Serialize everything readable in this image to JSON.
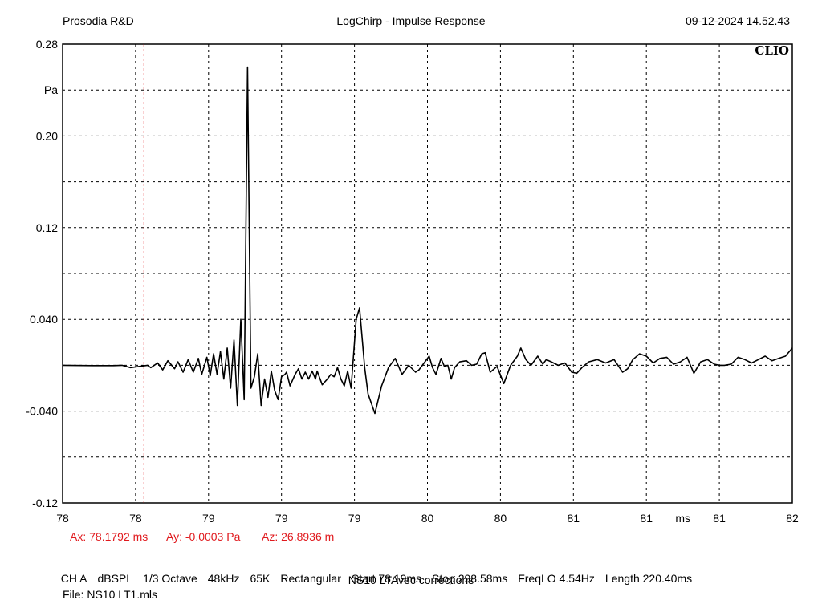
{
  "header": {
    "left": "Prosodia R&D",
    "center": "LogChirp - Impulse Response",
    "right": "09-12-2024 14.52.43"
  },
  "brand": "CLIO",
  "colors": {
    "trace": "#000000",
    "grid": "#000000",
    "cursor": "#e0191d"
  },
  "chart_data": {
    "type": "line",
    "title": "LogChirp - Impulse Response",
    "xlabel": "ms",
    "ylabel": "Pa",
    "xlim": [
      77.7,
      82.0
    ],
    "ylim": [
      -0.12,
      0.28
    ],
    "x_tick_labels": [
      "78",
      "78",
      "79",
      "79",
      "79",
      "80",
      "80",
      "81",
      "81",
      "81",
      "82"
    ],
    "y_tick_labels": [
      "0.28",
      "Pa",
      "0.20",
      "",
      "0.12",
      "",
      "0.040",
      "",
      "-0.040",
      "",
      "-0.12"
    ],
    "grid": true,
    "cursor": {
      "x": 78.1792
    },
    "series": [
      {
        "x": [
          77.7,
          77.88,
          78.0,
          78.05,
          78.1,
          78.2,
          78.22,
          78.26,
          78.29,
          78.32,
          78.36,
          78.38,
          78.41,
          78.44,
          78.47,
          78.5,
          78.52,
          78.55,
          78.57,
          78.59,
          78.61,
          78.63,
          78.65,
          78.67,
          78.69,
          78.71,
          78.73,
          78.75,
          78.77,
          78.79,
          78.81,
          78.83,
          78.85,
          78.87,
          78.89,
          78.91,
          78.93,
          78.95,
          78.97,
          78.99,
          79.01,
          79.02,
          79.04,
          79.07,
          79.09,
          79.11,
          79.13,
          79.15,
          79.17,
          79.19,
          79.2,
          79.23,
          79.26,
          79.28,
          79.3,
          79.32,
          79.34,
          79.36,
          79.38,
          79.4,
          79.43,
          79.45,
          79.48,
          79.5,
          79.54,
          79.58,
          79.62,
          79.66,
          79.7,
          79.74,
          79.78,
          79.8,
          79.83,
          79.86,
          79.88,
          79.9,
          79.93,
          79.95,
          79.97,
          79.99,
          80.01,
          80.04,
          80.08,
          80.11,
          80.14,
          80.17,
          80.19,
          80.22,
          80.26,
          80.3,
          80.34,
          80.38,
          80.4,
          80.43,
          80.46,
          80.5,
          80.53,
          80.55,
          80.58,
          80.62,
          80.66,
          80.7,
          80.73,
          80.76,
          80.8,
          80.85,
          80.9,
          80.95,
          81.0,
          81.03,
          81.06,
          81.1,
          81.14,
          81.18,
          81.22,
          81.26,
          81.3,
          81.34,
          81.38,
          81.42,
          81.46,
          81.5,
          81.54,
          81.57,
          81.6,
          81.64,
          81.68,
          81.72,
          81.76,
          81.8,
          81.84,
          81.88,
          81.92,
          81.96,
          82.0
        ],
        "values": [
          0.0,
          -0.0003,
          -0.0003,
          0.0,
          -0.002,
          0.0,
          -0.002,
          0.002,
          -0.004,
          0.004,
          -0.003,
          0.003,
          -0.006,
          0.005,
          -0.006,
          0.006,
          -0.008,
          0.007,
          -0.009,
          0.01,
          -0.008,
          0.012,
          -0.012,
          0.015,
          -0.02,
          0.022,
          -0.035,
          0.04,
          -0.03,
          0.26,
          -0.02,
          -0.01,
          0.01,
          -0.035,
          -0.012,
          -0.028,
          -0.005,
          -0.022,
          -0.03,
          -0.01,
          -0.008,
          -0.006,
          -0.018,
          -0.008,
          -0.003,
          -0.012,
          -0.006,
          -0.012,
          -0.005,
          -0.012,
          -0.005,
          -0.017,
          -0.012,
          -0.008,
          -0.01,
          -0.002,
          -0.012,
          -0.018,
          -0.005,
          -0.02,
          0.04,
          0.05,
          -0.002,
          -0.025,
          -0.042,
          -0.018,
          -0.002,
          0.006,
          -0.008,
          0.0,
          -0.006,
          -0.004,
          0.002,
          0.008,
          -0.002,
          -0.008,
          0.006,
          -0.001,
          0.0,
          -0.012,
          -0.002,
          0.003,
          0.004,
          0.0,
          0.001,
          0.01,
          0.011,
          -0.006,
          -0.001,
          -0.016,
          0.0,
          0.008,
          0.015,
          0.005,
          0.0,
          0.008,
          0.001,
          0.005,
          0.003,
          0.0,
          0.002,
          -0.006,
          -0.007,
          -0.002,
          0.003,
          0.005,
          0.002,
          0.005,
          -0.006,
          -0.003,
          0.005,
          0.01,
          0.008,
          0.002,
          0.006,
          0.007,
          0.001,
          0.003,
          0.007,
          -0.007,
          0.003,
          0.005,
          0.001,
          0.0,
          0.0,
          0.001,
          0.007,
          0.005,
          0.002,
          0.005,
          0.008,
          0.004,
          0.006,
          0.008,
          0.015
        ]
      }
    ]
  },
  "cursor_readout": {
    "ax": "Ax: 78.1792 ms",
    "ay": "Ay: -0.0003 Pa",
    "az": "Az: 26.8936 m"
  },
  "settings": {
    "items": [
      "CH A",
      "dBSPL",
      "1/3 Octave",
      "48kHz",
      "65K",
      "Rectangular",
      "Start 78.19ms",
      "Stop 298.58ms",
      "FreqLO 4.54Hz",
      "Length 220.40ms"
    ],
    "subtitle": "NS10 LTAvec corrections",
    "file": "File: NS10 LT1.mls"
  }
}
